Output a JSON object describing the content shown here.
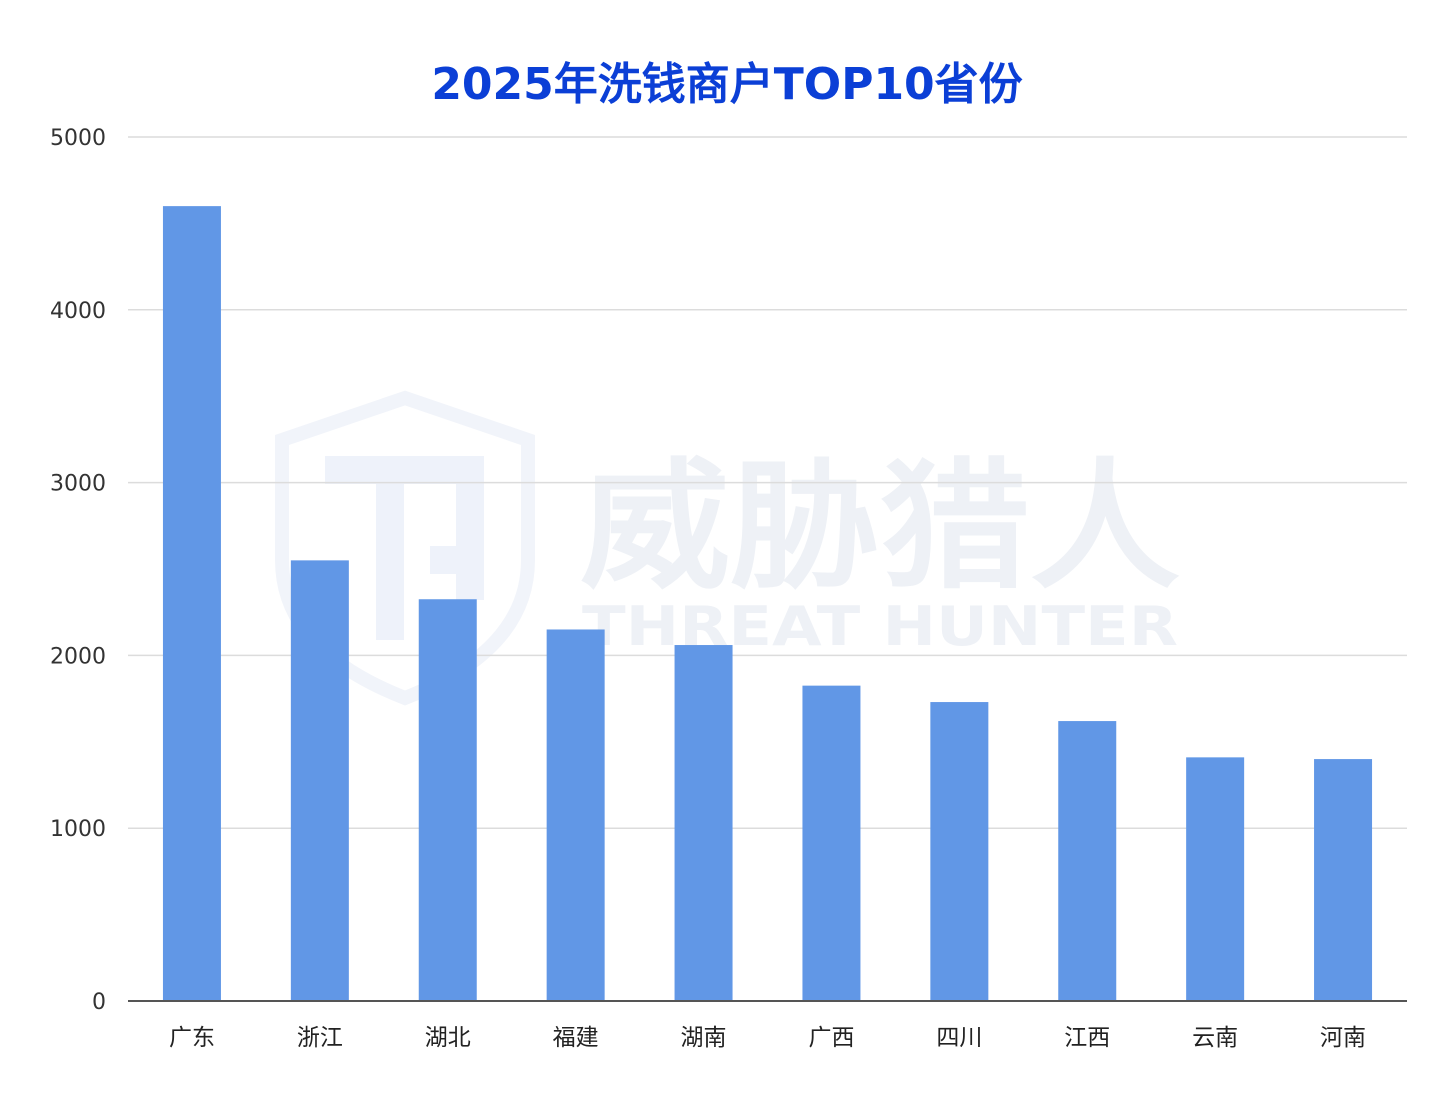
{
  "chart_data": {
    "type": "bar",
    "title": "2025年洗钱商户TOP10省份",
    "xlabel": "",
    "ylabel": "",
    "categories": [
      "广东",
      "浙江",
      "湖北",
      "福建",
      "湖南",
      "广西",
      "四川",
      "江西",
      "云南",
      "河南"
    ],
    "values": [
      4600,
      2550,
      2325,
      2150,
      2060,
      1825,
      1730,
      1620,
      1410,
      1400
    ],
    "ylim": [
      0,
      5000
    ],
    "yticks": [
      0,
      1000,
      2000,
      3000,
      4000,
      5000
    ],
    "grid": true,
    "bar_color": "#6197e6",
    "title_color": "#0b3fd6"
  },
  "watermark": {
    "name_cn": "威胁猎人",
    "name_en": "THREAT HUNTER",
    "icon": "shield-th-logo-icon"
  }
}
